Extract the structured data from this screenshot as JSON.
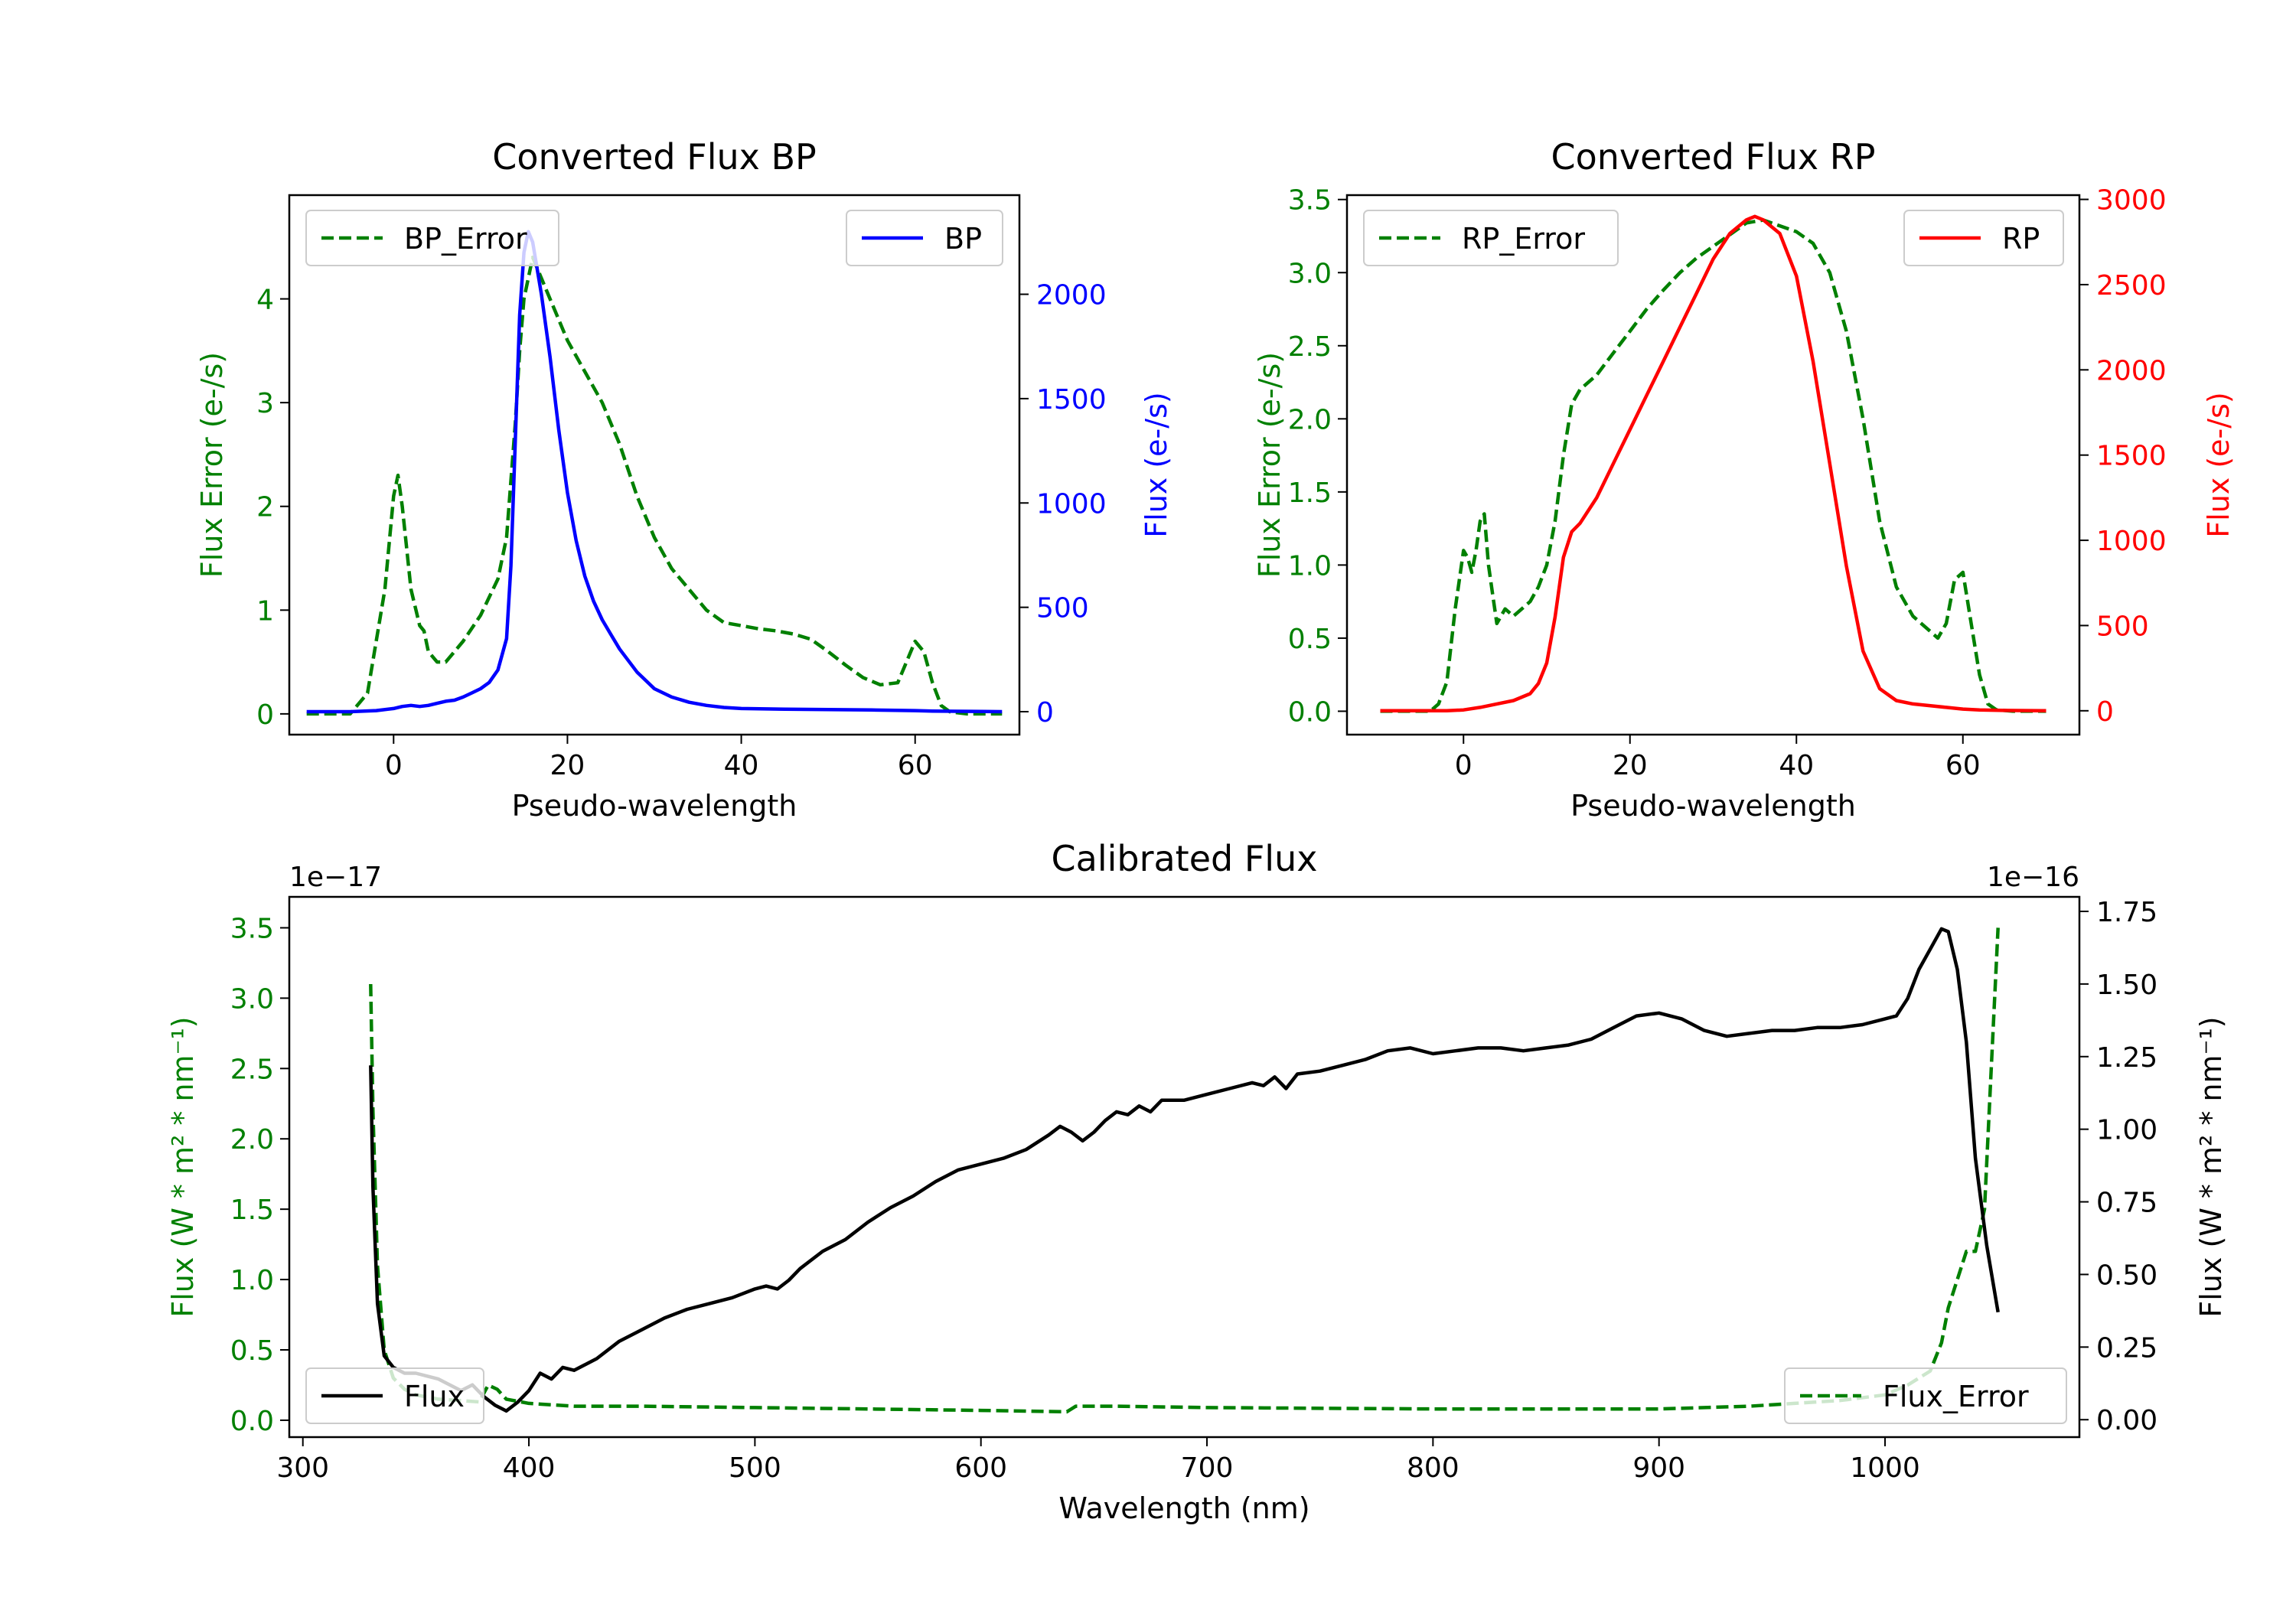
{
  "chart_data": [
    {
      "type": "line",
      "title": "Converted Flux BP",
      "xlabel": "Pseudo-wavelength",
      "xlim": [
        -12,
        72
      ],
      "xticks": [
        0,
        20,
        40,
        60
      ],
      "left_axis": {
        "label": "Flux Error (e-/s)",
        "color": "#008000",
        "ylim": [
          -0.2,
          5.0
        ],
        "ticks": [
          0,
          1,
          2,
          3,
          4
        ]
      },
      "right_axis": {
        "label": "Flux (e-/s)",
        "color": "#0000ff",
        "ylim": [
          -110,
          2475
        ],
        "ticks": [
          0,
          500,
          1000,
          1500,
          2000
        ]
      },
      "legend_left": {
        "label": "BP_Error",
        "position": "upper left"
      },
      "legend_right": {
        "label": "BP",
        "position": "upper right"
      },
      "series": [
        {
          "name": "BP_Error",
          "axis": "left",
          "color": "#008000",
          "style": "dashed",
          "x": [
            -10,
            -5,
            -3,
            -1,
            0,
            0.5,
            1,
            2,
            3,
            3.5,
            4,
            5,
            6,
            8,
            10,
            12,
            13,
            14,
            14.5,
            15,
            16,
            18,
            20,
            22,
            24,
            26,
            28,
            30,
            32,
            34,
            36,
            38,
            40,
            42,
            44,
            46,
            48,
            50,
            52,
            54,
            56,
            58,
            59,
            60,
            61,
            62,
            63,
            64,
            66,
            68,
            70
          ],
          "y": [
            0,
            0,
            0.2,
            1.2,
            2.1,
            2.3,
            2.0,
            1.2,
            0.85,
            0.8,
            0.6,
            0.5,
            0.5,
            0.7,
            0.95,
            1.3,
            1.7,
            2.8,
            3.5,
            4.0,
            4.4,
            4.0,
            3.6,
            3.3,
            3.0,
            2.6,
            2.1,
            1.7,
            1.4,
            1.2,
            1.0,
            0.88,
            0.85,
            0.82,
            0.8,
            0.77,
            0.72,
            0.6,
            0.47,
            0.35,
            0.28,
            0.3,
            0.5,
            0.7,
            0.6,
            0.3,
            0.08,
            0.02,
            0,
            0,
            0
          ]
        },
        {
          "name": "BP",
          "axis": "right",
          "color": "#0000ff",
          "style": "solid",
          "x": [
            -10,
            -5,
            -2,
            0,
            1,
            2,
            3,
            4,
            5,
            6,
            7,
            8,
            9,
            10,
            11,
            12,
            13,
            13.5,
            14,
            14.5,
            15,
            15.5,
            16,
            17,
            18,
            19,
            20,
            21,
            22,
            23,
            24,
            25,
            26,
            28,
            30,
            32,
            34,
            36,
            38,
            40,
            45,
            50,
            55,
            60,
            62,
            65,
            68,
            70
          ],
          "y": [
            0,
            0,
            5,
            15,
            25,
            30,
            25,
            30,
            40,
            50,
            55,
            70,
            90,
            110,
            140,
            200,
            350,
            700,
            1300,
            1900,
            2200,
            2300,
            2250,
            2000,
            1700,
            1350,
            1050,
            820,
            650,
            530,
            440,
            370,
            300,
            190,
            110,
            70,
            45,
            30,
            20,
            15,
            12,
            10,
            8,
            5,
            3,
            2,
            1,
            0
          ]
        }
      ]
    },
    {
      "type": "line",
      "title": "Converted Flux RP",
      "xlabel": "Pseudo-wavelength",
      "xlim": [
        -14,
        74
      ],
      "xticks": [
        0,
        20,
        40,
        60
      ],
      "left_axis": {
        "label": "Flux Error (e-/s)",
        "color": "#008000",
        "ylim": [
          -0.16,
          3.53
        ],
        "ticks": [
          0.0,
          0.5,
          1.0,
          1.5,
          2.0,
          2.5,
          3.0,
          3.5
        ]
      },
      "right_axis": {
        "label": "Flux (e-/s)",
        "color": "#ff0000",
        "ylim": [
          -140,
          3025
        ],
        "ticks": [
          0,
          500,
          1000,
          1500,
          2000,
          2500,
          3000
        ]
      },
      "legend_left": {
        "label": "RP_Error",
        "position": "upper left"
      },
      "legend_right": {
        "label": "RP",
        "position": "upper right"
      },
      "series": [
        {
          "name": "RP_Error",
          "axis": "left",
          "color": "#008000",
          "style": "dashed",
          "x": [
            -10,
            -4,
            -3,
            -2,
            -1,
            0,
            0.5,
            1,
            1.5,
            2,
            2.5,
            3,
            3.5,
            4,
            5,
            6,
            7,
            8,
            9,
            10,
            11,
            12,
            13,
            14,
            16,
            18,
            20,
            22,
            24,
            26,
            28,
            30,
            32,
            34,
            36,
            38,
            40,
            42,
            44,
            46,
            48,
            50,
            52,
            54,
            55,
            56,
            57,
            58,
            59,
            60,
            61,
            62,
            63,
            64,
            66,
            68,
            70
          ],
          "y": [
            0,
            0,
            0.05,
            0.2,
            0.7,
            1.1,
            1.05,
            0.95,
            1.1,
            1.3,
            1.35,
            1.0,
            0.8,
            0.6,
            0.7,
            0.65,
            0.7,
            0.75,
            0.85,
            1.0,
            1.3,
            1.75,
            2.1,
            2.2,
            2.3,
            2.45,
            2.6,
            2.75,
            2.88,
            3.0,
            3.1,
            3.18,
            3.26,
            3.34,
            3.36,
            3.32,
            3.28,
            3.2,
            3.0,
            2.6,
            2.0,
            1.3,
            0.85,
            0.65,
            0.6,
            0.55,
            0.5,
            0.6,
            0.9,
            0.95,
            0.6,
            0.25,
            0.05,
            0.01,
            0,
            0,
            0
          ]
        },
        {
          "name": "RP",
          "axis": "right",
          "color": "#ff0000",
          "style": "solid",
          "x": [
            -10,
            -2,
            0,
            2,
            4,
            6,
            8,
            9,
            10,
            11,
            12,
            13,
            14,
            16,
            18,
            20,
            22,
            24,
            26,
            28,
            30,
            32,
            34,
            35,
            36,
            38,
            40,
            42,
            44,
            46,
            48,
            50,
            52,
            54,
            56,
            58,
            60,
            62,
            65,
            70
          ],
          "y": [
            0,
            0,
            5,
            20,
            40,
            60,
            100,
            160,
            280,
            550,
            900,
            1050,
            1100,
            1250,
            1450,
            1650,
            1850,
            2050,
            2250,
            2450,
            2650,
            2800,
            2880,
            2900,
            2880,
            2800,
            2550,
            2050,
            1450,
            850,
            350,
            130,
            60,
            40,
            30,
            20,
            10,
            5,
            2,
            0
          ]
        }
      ]
    },
    {
      "type": "line",
      "title": "Calibrated Flux",
      "xlabel": "Wavelength (nm)",
      "xlim": [
        294,
        1086
      ],
      "xticks": [
        300,
        400,
        500,
        600,
        700,
        800,
        900,
        1000
      ],
      "left_axis": {
        "label": "Flux (W * m² * nm⁻¹)",
        "color": "#008000",
        "ylim": [
          -0.12,
          3.72
        ],
        "ticks": [
          0.0,
          0.5,
          1.0,
          1.5,
          2.0,
          2.5,
          3.0,
          3.5
        ],
        "scale_label": "1e−17"
      },
      "right_axis": {
        "label": "Flux (W * m² * nm⁻¹)",
        "color": "#000000",
        "ylim": [
          -0.06,
          1.8
        ],
        "ticks": [
          0.0,
          0.25,
          0.5,
          0.75,
          1.0,
          1.25,
          1.5,
          1.75
        ],
        "scale_label": "1e−16"
      },
      "legend_left": {
        "label": "Flux",
        "position": "lower left"
      },
      "legend_right": {
        "label": "Flux_Error",
        "position": "lower right"
      },
      "series": [
        {
          "name": "Flux_Error",
          "axis": "left",
          "color": "#008000",
          "style": "dashed",
          "x": [
            330,
            331,
            333,
            336,
            340,
            345,
            350,
            360,
            370,
            378,
            382,
            386,
            390,
            400,
            420,
            450,
            500,
            550,
            600,
            638,
            642,
            660,
            700,
            800,
            900,
            940,
            960,
            980,
            1000,
            1010,
            1020,
            1025,
            1028,
            1032,
            1036,
            1040,
            1044,
            1047,
            1050
          ],
          "y": [
            3.1,
            2.2,
            1.1,
            0.5,
            0.3,
            0.22,
            0.18,
            0.15,
            0.14,
            0.13,
            0.25,
            0.22,
            0.15,
            0.12,
            0.1,
            0.1,
            0.09,
            0.08,
            0.07,
            0.06,
            0.1,
            0.1,
            0.09,
            0.08,
            0.08,
            0.1,
            0.12,
            0.14,
            0.18,
            0.25,
            0.35,
            0.55,
            0.8,
            1.0,
            1.2,
            1.2,
            1.5,
            2.5,
            3.5
          ]
        },
        {
          "name": "Flux",
          "axis": "right",
          "color": "#000000",
          "style": "solid",
          "x": [
            330,
            331,
            333,
            336,
            340,
            345,
            350,
            355,
            360,
            365,
            370,
            375,
            380,
            385,
            390,
            395,
            400,
            405,
            410,
            415,
            420,
            425,
            430,
            440,
            450,
            460,
            470,
            480,
            490,
            500,
            505,
            510,
            515,
            520,
            530,
            540,
            550,
            560,
            570,
            580,
            590,
            600,
            610,
            620,
            630,
            635,
            640,
            645,
            650,
            655,
            660,
            665,
            670,
            675,
            680,
            690,
            700,
            710,
            720,
            725,
            730,
            735,
            740,
            750,
            760,
            770,
            780,
            790,
            800,
            810,
            820,
            830,
            840,
            850,
            860,
            870,
            880,
            890,
            900,
            910,
            920,
            930,
            940,
            950,
            960,
            970,
            980,
            990,
            1000,
            1005,
            1010,
            1015,
            1020,
            1025,
            1028,
            1032,
            1036,
            1040,
            1045,
            1050
          ],
          "y": [
            1.22,
            0.8,
            0.4,
            0.22,
            0.18,
            0.16,
            0.16,
            0.15,
            0.14,
            0.12,
            0.1,
            0.12,
            0.08,
            0.05,
            0.03,
            0.06,
            0.1,
            0.16,
            0.14,
            0.18,
            0.17,
            0.19,
            0.21,
            0.27,
            0.31,
            0.35,
            0.38,
            0.4,
            0.42,
            0.45,
            0.46,
            0.45,
            0.48,
            0.52,
            0.58,
            0.62,
            0.68,
            0.73,
            0.77,
            0.82,
            0.86,
            0.88,
            0.9,
            0.93,
            0.98,
            1.01,
            0.99,
            0.96,
            0.99,
            1.03,
            1.06,
            1.05,
            1.08,
            1.06,
            1.1,
            1.1,
            1.12,
            1.14,
            1.16,
            1.15,
            1.18,
            1.14,
            1.19,
            1.2,
            1.22,
            1.24,
            1.27,
            1.28,
            1.26,
            1.27,
            1.28,
            1.28,
            1.27,
            1.28,
            1.29,
            1.31,
            1.35,
            1.39,
            1.4,
            1.38,
            1.34,
            1.32,
            1.33,
            1.34,
            1.34,
            1.35,
            1.35,
            1.36,
            1.38,
            1.39,
            1.45,
            1.55,
            1.62,
            1.69,
            1.68,
            1.55,
            1.3,
            0.9,
            0.6,
            0.37
          ]
        }
      ]
    }
  ]
}
